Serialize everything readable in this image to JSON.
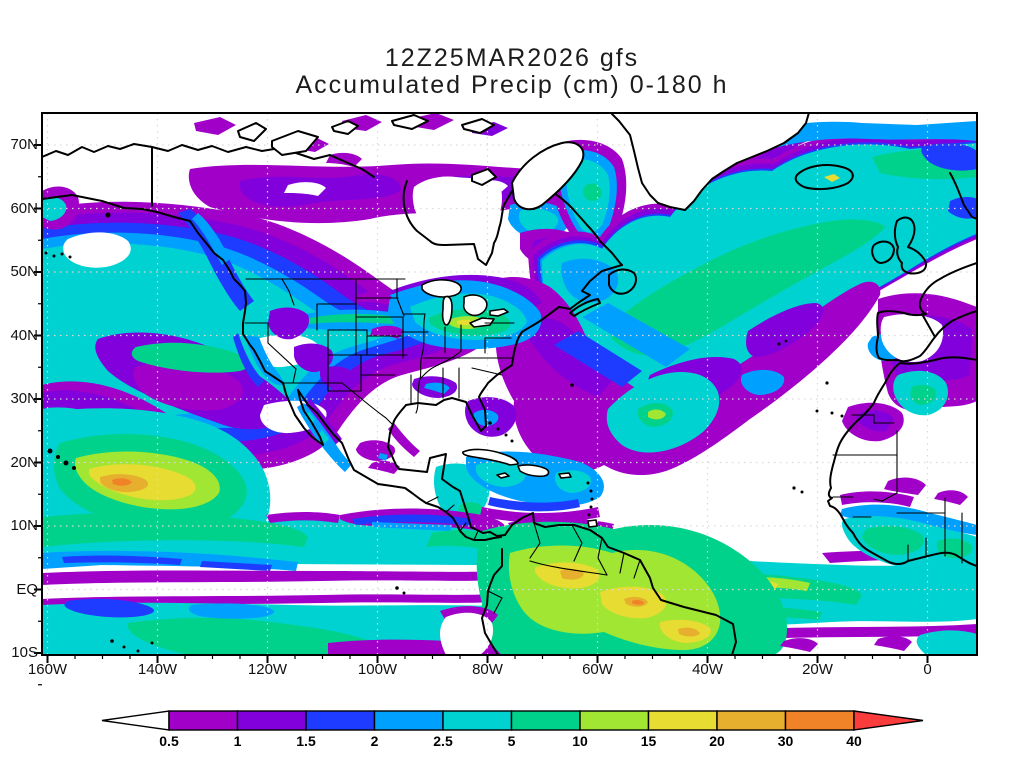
{
  "title": {
    "line1": "12Z25MAR2026 gfs",
    "line2": "Accumulated Precip (cm) 0-180 h"
  },
  "map": {
    "lat_labels": [
      "70N",
      "60N",
      "50N",
      "40N",
      "30N",
      "20N",
      "10N",
      "EQ",
      "10S"
    ],
    "lon_labels": [
      "160W",
      "140W",
      "120W",
      "100W",
      "80W",
      "60W",
      "40W",
      "20W",
      "0"
    ]
  },
  "colorbar": {
    "labels": [
      "0.5",
      "1",
      "1.5",
      "2",
      "2.5",
      "5",
      "10",
      "15",
      "20",
      "30",
      "40"
    ],
    "segment_colors": [
      "#A000C8",
      "#8200DC",
      "#1E3CFF",
      "#00A0FF",
      "#00D2D2",
      "#00D28C",
      "#A0E632",
      "#E6DC32",
      "#E6AF2D",
      "#F08228"
    ],
    "below_min_color": "#FFFFFF",
    "above_max_color": "#FA3C3C",
    "outline_color": "#000000"
  },
  "chart_data": {
    "type": "heatmap",
    "title": "12Z25MAR2026 gfs",
    "subtitle": "Accumulated Precip (cm) 0-180 h",
    "model": "gfs",
    "initialization": "12Z25MAR2026",
    "forecast_hours": [
      0,
      180
    ],
    "units": "cm",
    "projection": "latlon",
    "lat_range": [
      "10S",
      "75N"
    ],
    "lon_range": [
      "160W",
      "10E"
    ],
    "y_ticks": [
      "70N",
      "60N",
      "50N",
      "40N",
      "30N",
      "20N",
      "10N",
      "EQ",
      "10S"
    ],
    "x_ticks": [
      "160W",
      "140W",
      "120W",
      "100W",
      "80W",
      "60W",
      "40W",
      "20W",
      "0"
    ],
    "grid": "dotted 10-degree latitude / 20-degree longitude",
    "legend_position": "bottom horizontal colorbar with end arrows",
    "contour_levels_cm": [
      0.5,
      1,
      1.5,
      2,
      2.5,
      5,
      10,
      15,
      20,
      30,
      40
    ],
    "palette": [
      {
        "range": "< 0.5",
        "color": "#FFFFFF"
      },
      {
        "range": "0.5-1",
        "color": "#A000C8"
      },
      {
        "range": "1-1.5",
        "color": "#8200DC"
      },
      {
        "range": "1.5-2",
        "color": "#1E3CFF"
      },
      {
        "range": "2-2.5",
        "color": "#00A0FF"
      },
      {
        "range": "2.5-5",
        "color": "#00D2D2"
      },
      {
        "range": "5-10",
        "color": "#00D28C"
      },
      {
        "range": "10-15",
        "color": "#A0E632"
      },
      {
        "range": "15-20",
        "color": "#E6DC32"
      },
      {
        "range": "20-30",
        "color": "#E6AF2D"
      },
      {
        "range": "30-40",
        "color": "#F08228"
      },
      {
        "range": "> 40",
        "color": "#FA3C3C"
      }
    ],
    "notable_features": [
      "North Pacific storm track 2.5-5 cm shield (40-58N, 160-125W) with embedded 0.5-1.5 cm swirls and dry holes",
      "Localized 20-40+ cm maximum near 15-20N, 150-135W in the central tropical Pacific",
      "Pacific ITCZ band 2.5-10 cm near 5-12N with dry (<0.5 cm) strip along the equator",
      "Heavy 10-30 cm (locally >30 cm) over Colombia, Venezuela, the Guianas and Amazonia",
      "Atlantic ITCZ 2.5-15 cm band near 0-5N stretching to the Guinea coast",
      "Large 0.5-1.5 cm swath across the subtropical Atlantic (20-40N, 75-25W)",
      "North Atlantic 2.5-10 cm storm track from Newfoundland past Iceland to the UK",
      "Dry <0.5 cm zones: subtropical eastern Pacific and Atlantic highs, SW US, Texas, Sahara, Arctic Canada"
    ]
  }
}
